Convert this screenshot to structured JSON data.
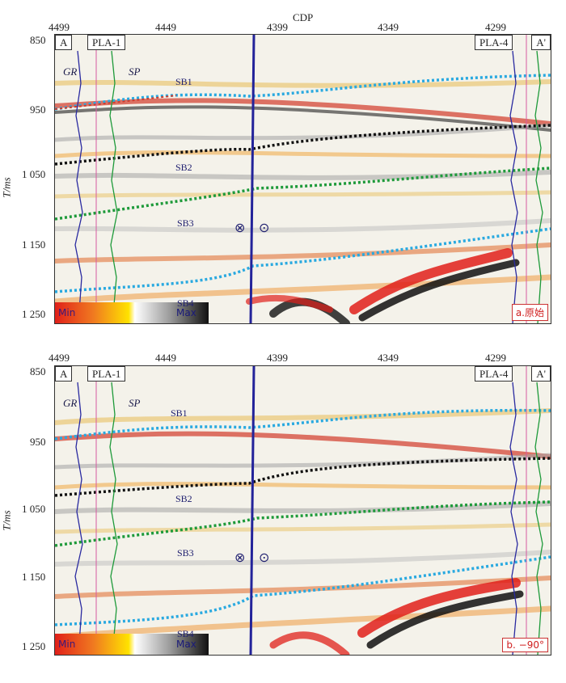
{
  "figure": {
    "cdp_title": "CDP",
    "cdp_ticks": [
      "4499",
      "4449",
      "4399",
      "4349",
      "4299"
    ],
    "time_ticks": [
      "850",
      "950",
      "1 050",
      "1 150",
      "1 250"
    ],
    "y_axis_title": "T/ms"
  },
  "panels": [
    {
      "left_label": "A",
      "right_label": "A'",
      "well_left": "PLA-1",
      "well_right": "PLA-4",
      "log_gr": "GR",
      "log_sp": "SP",
      "horizons": [
        "SB1",
        "SB2",
        "SB3",
        "SB4"
      ],
      "fault_into": "⊗",
      "fault_out": "⊙",
      "colorbar_min": "Min",
      "colorbar_max": "Max",
      "tag": "a.原始"
    },
    {
      "left_label": "A",
      "right_label": "A'",
      "well_left": "PLA-1",
      "well_right": "PLA-4",
      "log_gr": "GR",
      "log_sp": "SP",
      "horizons": [
        "SB1",
        "SB2",
        "SB3",
        "SB4"
      ],
      "fault_into": "⊗",
      "fault_out": "⊙",
      "colorbar_min": "Min",
      "colorbar_max": "Max",
      "tag": "b. −90°"
    }
  ],
  "colors": {
    "sb1": "#29a9e0",
    "sb2": "#111111",
    "sb3": "#1e9a3a",
    "sb4": "#29a9e0",
    "fault": "#23239a",
    "well_pink": "#d65aa0",
    "gr_curve": "#2a2aa0",
    "sp_curve": "#1e9a3a"
  }
}
